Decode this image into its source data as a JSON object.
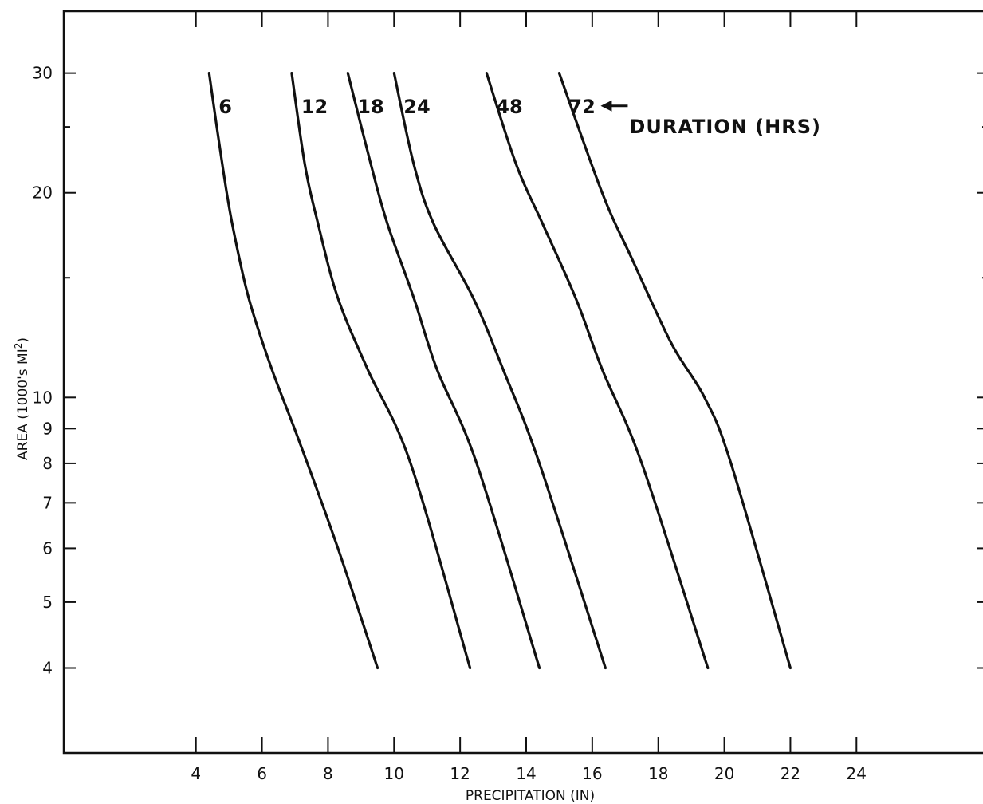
{
  "chart_data": {
    "type": "line",
    "title": "",
    "xlabel": "PRECIPITATION (IN)",
    "ylabel": "AREA (1000's MI²)",
    "ylabel_parts": {
      "main": "AREA (1000's MI",
      "sup": "2",
      "close": ")"
    },
    "xlim": [
      0,
      28
    ],
    "ylim": [
      3,
      37
    ],
    "yscale": "log",
    "grid": false,
    "x_ticks": [
      4,
      6,
      8,
      10,
      12,
      14,
      16,
      18,
      20,
      22,
      24
    ],
    "x_tick_labels": [
      "4",
      "6",
      "8",
      "10",
      "12",
      "14",
      "16",
      "18",
      "20",
      "22",
      "24"
    ],
    "y_ticks": [
      4,
      5,
      6,
      7,
      8,
      9,
      10,
      20,
      30
    ],
    "y_tick_labels": [
      "4",
      "5",
      "6",
      "7",
      "8",
      "9",
      "10",
      "20",
      "30"
    ],
    "y_minor_ticks": [
      15,
      25
    ],
    "annotation": "DURATION (HRS)",
    "series": [
      {
        "name": "6",
        "x": [
          4.4,
          4.8,
          5.1,
          5.6,
          6.3,
          7.1,
          8.3,
          9.5
        ],
        "y": [
          30,
          22,
          18,
          14,
          11,
          8.7,
          6,
          4
        ]
      },
      {
        "name": "12",
        "x": [
          6.9,
          7.3,
          7.7,
          8.3,
          9.2,
          10.5,
          12.3
        ],
        "y": [
          30,
          22,
          18,
          14,
          11,
          8,
          4
        ]
      },
      {
        "name": "18",
        "x": [
          8.6,
          9.3,
          9.8,
          10.6,
          11.3,
          12.5,
          14.4
        ],
        "y": [
          30,
          22,
          18,
          14,
          11,
          8,
          4
        ]
      },
      {
        "name": "24",
        "x": [
          10.0,
          10.6,
          11.2,
          12.4,
          13.3,
          14.4,
          16.4
        ],
        "y": [
          30,
          22,
          18,
          14,
          11,
          8,
          4
        ]
      },
      {
        "name": "48",
        "x": [
          12.8,
          13.7,
          14.5,
          15.5,
          16.3,
          17.5,
          19.5
        ],
        "y": [
          30,
          22,
          18,
          14,
          11,
          8,
          4
        ]
      },
      {
        "name": "72",
        "x": [
          15.0,
          16.3,
          17.2,
          18.4,
          19.4,
          20.2,
          22.0
        ],
        "y": [
          30,
          20,
          16,
          12,
          10,
          8,
          4
        ]
      }
    ]
  }
}
